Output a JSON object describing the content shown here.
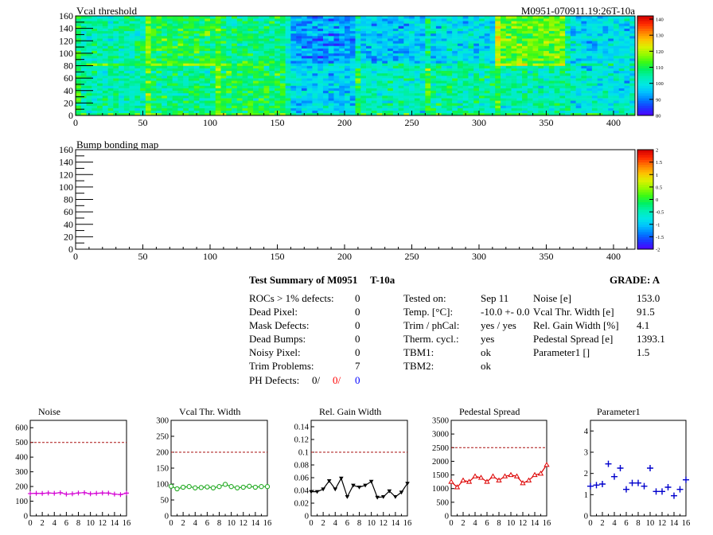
{
  "chart_data": [
    {
      "type": "heatmap",
      "title": "Vcal threshold",
      "module_tag": "M0951-070911.19:26T-10a",
      "xlim": [
        0,
        416
      ],
      "ylim": [
        0,
        160
      ],
      "x_ticks": [
        "0",
        "50",
        "100",
        "150",
        "200",
        "250",
        "300",
        "350",
        "400"
      ],
      "y_ticks": [
        "0",
        "20",
        "40",
        "60",
        "80",
        "100",
        "120",
        "140",
        "160"
      ],
      "z_ticks": [
        "80",
        "90",
        "100",
        "110",
        "120",
        "130",
        "140"
      ],
      "zlim": [
        80,
        142
      ],
      "roc_mean_top": [
        104,
        106,
        109,
        97,
        103,
        105,
        104,
        100
      ],
      "roc_mean_bottom": [
        104,
        110,
        107,
        92,
        96,
        98,
        115,
        98
      ]
    },
    {
      "type": "heatmap",
      "title": "Bump bonding map",
      "xlim": [
        0,
        416
      ],
      "ylim": [
        0,
        160
      ],
      "x_ticks": [
        "0",
        "50",
        "100",
        "150",
        "200",
        "250",
        "300",
        "350",
        "400"
      ],
      "y_ticks": [
        "0",
        "20",
        "40",
        "60",
        "80",
        "100",
        "120",
        "140",
        "160"
      ],
      "z_ticks": [
        "-2",
        "-1.5",
        "-1",
        "-0.5",
        "0",
        "0.5",
        "1",
        "1.5",
        "2"
      ],
      "zlim": [
        -2,
        2
      ]
    },
    {
      "type": "line",
      "title": "Noise",
      "x_ticks": [
        "0",
        "2",
        "4",
        "6",
        "8",
        "10",
        "12",
        "14",
        "16"
      ],
      "y_ticks": [
        "0",
        "100",
        "200",
        "300",
        "400",
        "500",
        "600"
      ],
      "ylim": [
        0,
        650
      ],
      "xlim": [
        0,
        16
      ],
      "threshold": 500,
      "color": "#d400d4",
      "marker": "cross",
      "values": [
        152,
        154,
        153,
        156,
        154,
        158,
        148,
        150,
        156,
        158,
        150,
        154,
        156,
        155,
        148,
        145,
        155
      ]
    },
    {
      "type": "line",
      "title": "Vcal Thr. Width",
      "x_ticks": [
        "0",
        "2",
        "4",
        "6",
        "8",
        "10",
        "12",
        "14",
        "16"
      ],
      "y_ticks": [
        "0",
        "50",
        "100",
        "150",
        "200",
        "250",
        "300"
      ],
      "ylim": [
        0,
        300
      ],
      "xlim": [
        0,
        16
      ],
      "threshold": 200,
      "color": "#22aa22",
      "marker": "circle",
      "values": [
        93,
        85,
        90,
        92,
        88,
        89,
        91,
        88,
        92,
        99,
        92,
        88,
        90,
        93,
        90,
        92,
        92
      ]
    },
    {
      "type": "line",
      "title": "Rel. Gain Width",
      "x_ticks": [
        "0",
        "2",
        "4",
        "6",
        "8",
        "10",
        "12",
        "14",
        "16"
      ],
      "y_ticks": [
        "0",
        "0.02",
        "0.04",
        "0.06",
        "0.08",
        "0.1",
        "0.12",
        "0.14"
      ],
      "ylim": [
        0,
        0.15
      ],
      "xlim": [
        0,
        16
      ],
      "threshold": 0.1,
      "color": "#000000",
      "marker": "triangle-down",
      "values": [
        0.038,
        0.038,
        0.042,
        0.055,
        0.042,
        0.059,
        0.03,
        0.048,
        0.045,
        0.048,
        0.054,
        0.029,
        0.03,
        0.039,
        0.03,
        0.037,
        0.051
      ]
    },
    {
      "type": "line",
      "title": "Pedestal Spread",
      "x_ticks": [
        "0",
        "2",
        "4",
        "6",
        "8",
        "10",
        "12",
        "14",
        "16"
      ],
      "y_ticks": [
        "0",
        "500",
        "1000",
        "1500",
        "2000",
        "2500",
        "3000",
        "3500"
      ],
      "ylim": [
        0,
        3500
      ],
      "xlim": [
        0,
        16
      ],
      "threshold": 2500,
      "color": "#dd0000",
      "marker": "triangle-up",
      "values": [
        1250,
        1050,
        1300,
        1250,
        1450,
        1400,
        1250,
        1450,
        1300,
        1450,
        1500,
        1450,
        1200,
        1300,
        1500,
        1550,
        1870
      ]
    },
    {
      "type": "scatter",
      "title": "Parameter1",
      "x_ticks": [
        "0",
        "2",
        "4",
        "6",
        "8",
        "10",
        "12",
        "14",
        "16"
      ],
      "y_ticks": [
        "0",
        "1",
        "2",
        "3",
        "4"
      ],
      "ylim": [
        0,
        4.5
      ],
      "xlim": [
        0,
        16
      ],
      "color": "#0000cc",
      "marker": "plus",
      "values": [
        1.4,
        1.45,
        1.5,
        2.45,
        1.85,
        2.25,
        1.25,
        1.55,
        1.55,
        1.4,
        2.25,
        1.15,
        1.15,
        1.35,
        0.95,
        1.25,
        1.7
      ]
    }
  ],
  "summary": {
    "title": "Test Summary of M0951",
    "temp_tag": "T-10a",
    "grade": "GRADE:  A",
    "col1": [
      {
        "label": "ROCs > 1% defects:",
        "value": "0"
      },
      {
        "label": "Dead Pixel:",
        "value": "0"
      },
      {
        "label": "Mask Defects:",
        "value": "0"
      },
      {
        "label": "Dead Bumps:",
        "value": "0"
      },
      {
        "label": "Noisy Pixel:",
        "value": "0"
      },
      {
        "label": "Trim Problems:",
        "value": "7"
      }
    ],
    "ph_defects": {
      "label": "PH Defects:",
      "v1": "0/",
      "v2": "0/",
      "v3": "0",
      "c1": "#000000",
      "c2": "#ff0000",
      "c3": "#0000ff"
    },
    "col2": [
      {
        "label": "Tested on:",
        "value": "Sep 11"
      },
      {
        "label": "Temp. [°C]:",
        "value": "-10.0 +- 0.0"
      },
      {
        "label": "Trim / phCal:",
        "value": "yes / yes"
      },
      {
        "label": "Therm. cycl.:",
        "value": "yes"
      },
      {
        "label": "TBM1:",
        "value": "ok"
      },
      {
        "label": "TBM2:",
        "value": "ok"
      }
    ],
    "col3": [
      {
        "label": "Noise [e]",
        "value": "153.0"
      },
      {
        "label": "Vcal Thr. Width [e]",
        "value": "91.5"
      },
      {
        "label": "Rel. Gain Width [%]",
        "value": "4.1"
      },
      {
        "label": "Pedestal Spread [e]",
        "value": "1393.1"
      },
      {
        "label": "Parameter1 []",
        "value": "1.5"
      }
    ]
  }
}
